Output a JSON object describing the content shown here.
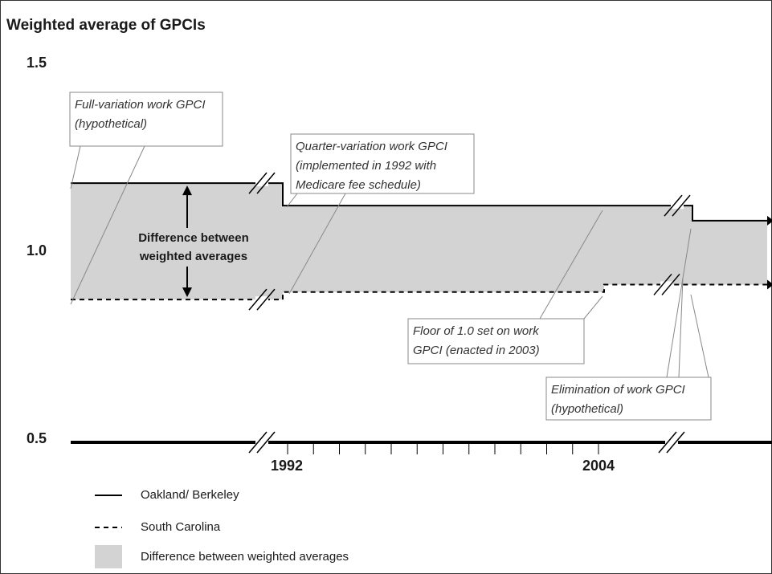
{
  "chart_data": {
    "type": "step-line",
    "title": "Weighted average of GPCIs",
    "ylim": [
      0.5,
      1.5
    ],
    "yticks": [
      {
        "value": 0.5,
        "label": "0.5"
      },
      {
        "value": 1.0,
        "label": "1.0"
      },
      {
        "value": 1.5,
        "label": "1.5"
      }
    ],
    "x_labels": [
      "1992",
      "2004"
    ],
    "series": [
      {
        "name": "Oakland/ Berkeley",
        "color": "#000000",
        "style": "solid",
        "values": [
          1.19,
          1.13,
          1.09
        ]
      },
      {
        "name": "South Carolina",
        "color": "#000000",
        "style": "dashed",
        "values": [
          0.88,
          0.9,
          0.92
        ]
      }
    ],
    "area": {
      "name": "Difference between weighted averages",
      "color": "#d3d3d3"
    },
    "difference_label": [
      "Difference between",
      "weighted averages"
    ],
    "annotations": [
      {
        "lines": [
          "Full-variation work GPCI",
          "(hypothetical)"
        ]
      },
      {
        "lines": [
          "Quarter-variation work GPCI",
          "(implemented in 1992 with",
          "Medicare fee schedule)"
        ]
      },
      {
        "lines": [
          "Floor of 1.0 set on work",
          "GPCI (enacted in 2003)"
        ]
      },
      {
        "lines": [
          "Elimination of work GPCI",
          "(hypothetical)"
        ]
      }
    ]
  }
}
